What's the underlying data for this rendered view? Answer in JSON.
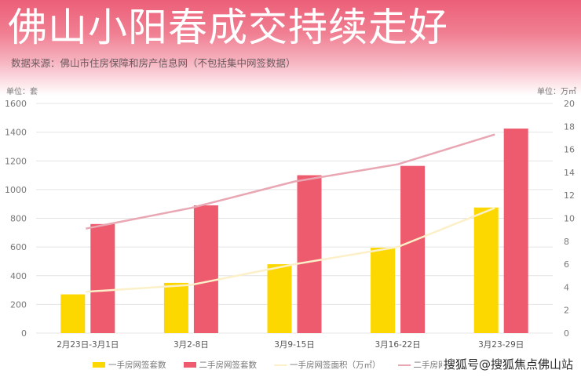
{
  "header": {
    "title": "佛山小阳春成交持续走好",
    "source": "数据来源：佛山市住房保障和房产信息网（不包括集中网签数据）",
    "unit_left": "单位：套",
    "unit_right": "单位：万㎡"
  },
  "watermark": "搜狐号@搜狐焦点佛山站",
  "colors": {
    "new_units": "#fcd800",
    "resale_units": "#ee5a6e",
    "new_area": "#fbf0c8",
    "resale_area": "#e9a7b3",
    "grid": "#e4e4e4"
  },
  "chart_data": {
    "type": "bar",
    "title": "佛山小阳春成交持续走好",
    "categories": [
      "2月23日-3月1日",
      "3月2-8日",
      "3月9-15日",
      "3月16-22日",
      "3月23-29日"
    ],
    "series": [
      {
        "name": "一手房网签套数",
        "type": "bar",
        "axis": "left",
        "values": [
          270,
          350,
          480,
          595,
          875
        ]
      },
      {
        "name": "二手房网签套数",
        "type": "bar",
        "axis": "left",
        "values": [
          760,
          890,
          1100,
          1165,
          1425
        ]
      },
      {
        "name": "一手房网签面积（万㎡）",
        "type": "line",
        "axis": "right",
        "values": [
          3.6,
          4.2,
          6.0,
          7.5,
          10.9
        ]
      },
      {
        "name": "二手房网签",
        "type": "line",
        "axis": "right",
        "values": [
          9.1,
          10.9,
          13.2,
          14.7,
          17.3
        ]
      }
    ],
    "y_left": {
      "label": "单位：套",
      "range": [
        0,
        1600
      ],
      "ticks": [
        0,
        200,
        400,
        600,
        800,
        1000,
        1200,
        1400,
        1600
      ]
    },
    "y_right": {
      "label": "单位：万㎡",
      "range": [
        0,
        20
      ],
      "ticks": [
        0,
        2,
        4,
        6,
        8,
        10,
        12,
        14,
        16,
        18,
        20
      ]
    },
    "grid": true,
    "legend_position": "bottom"
  }
}
